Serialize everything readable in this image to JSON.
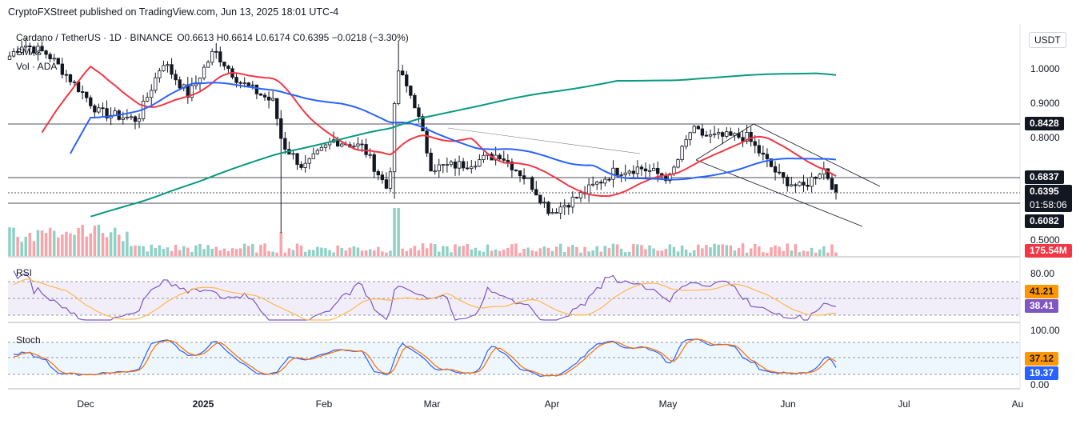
{
  "credit": "CryptoFXStreet published on TradingView.com, Jun 13, 2025 18:01 UTC-4",
  "legend": {
    "symbol": "Cardano / TetherUS · 1D · BINANCE",
    "ohlc": "O0.6613 H0.6614 L0.6174 C0.6395 −0.0218 (−3.30%)",
    "sma": "SMAs",
    "vol": "Vol · ADA"
  },
  "axis": {
    "currency": "USDT",
    "price_ticks": [
      "1.0000",
      "0.9000",
      "0.8000",
      "0.5000"
    ],
    "rsi_ticks": [
      "80.00"
    ],
    "stoch_ticks": [
      "100.00",
      "0.00"
    ],
    "x_ticks": [
      "Dec",
      "2025",
      "Feb",
      "Mar",
      "Apr",
      "May",
      "Jun",
      "Jul",
      "Au"
    ]
  },
  "price_labels": {
    "resistance_high": "0.8428",
    "resistance": "0.6837",
    "close": "0.6395",
    "countdown": "01:58:06",
    "support": "0.6082",
    "volume": "175.54M"
  },
  "panes": {
    "rsi_label": "RSI",
    "rsi_value": "41.21",
    "rsi_ma_value": "38.41",
    "stoch_label": "Stoch",
    "stoch_k": "37.12",
    "stoch_d": "19.37"
  },
  "colors": {
    "up": "#089981",
    "down": "#f23645",
    "sma_fast": "#f23645",
    "sma_mid": "#2962ff",
    "sma_slow": "#089981",
    "rsi": "#7e57c2",
    "rsi_ma": "#ffb74d",
    "stoch_k": "#2962ff",
    "stoch_d": "#ff6d00"
  },
  "chart_data": {
    "type": "candlestick",
    "title": "Cardano / TetherUS · 1D · BINANCE",
    "ylim": [
      0.5,
      1.06
    ],
    "ohlc_last": {
      "open": 0.6613,
      "high": 0.6614,
      "low": 0.6174,
      "close": 0.6395
    },
    "horizontal_levels": [
      0.8428,
      0.6837,
      0.6082
    ],
    "close_path": [
      {
        "date": "Nov 21",
        "close": 0.62
      },
      {
        "date": "Nov 24",
        "close": 0.83
      },
      {
        "date": "Nov 28",
        "close": 1.0
      },
      {
        "date": "Dec 4",
        "close": 1.07
      },
      {
        "date": "Dec 10",
        "close": 1.04
      },
      {
        "date": "Dec 18",
        "close": 0.93
      },
      {
        "date": "Dec 22",
        "close": 0.87
      },
      {
        "date": "Dec 31",
        "close": 0.85
      },
      {
        "date": "Jan 6",
        "close": 1.02
      },
      {
        "date": "Jan 12",
        "close": 0.92
      },
      {
        "date": "Jan 18",
        "close": 1.05
      },
      {
        "date": "Jan 24",
        "close": 0.96
      },
      {
        "date": "Feb 1",
        "close": 0.9
      },
      {
        "date": "Feb 3",
        "close": 0.78
      },
      {
        "date": "Feb 8",
        "close": 0.71
      },
      {
        "date": "Feb 15",
        "close": 0.79
      },
      {
        "date": "Feb 22",
        "close": 0.77
      },
      {
        "date": "Feb 28",
        "close": 0.64
      },
      {
        "date": "Mar 2",
        "close": 1.0
      },
      {
        "date": "Mar 6",
        "close": 0.9
      },
      {
        "date": "Mar 10",
        "close": 0.71
      },
      {
        "date": "Mar 18",
        "close": 0.72
      },
      {
        "date": "Mar 26",
        "close": 0.75
      },
      {
        "date": "Apr 2",
        "close": 0.67
      },
      {
        "date": "Apr 7",
        "close": 0.58
      },
      {
        "date": "Apr 14",
        "close": 0.63
      },
      {
        "date": "Apr 22",
        "close": 0.7
      },
      {
        "date": "Apr 28",
        "close": 0.71
      },
      {
        "date": "May 5",
        "close": 0.68
      },
      {
        "date": "May 10",
        "close": 0.82
      },
      {
        "date": "May 14",
        "close": 0.8
      },
      {
        "date": "May 23",
        "close": 0.8
      },
      {
        "date": "May 31",
        "close": 0.68
      },
      {
        "date": "Jun 5",
        "close": 0.65
      },
      {
        "date": "Jun 10",
        "close": 0.71
      },
      {
        "date": "Jun 13",
        "close": 0.6395
      }
    ]
  }
}
